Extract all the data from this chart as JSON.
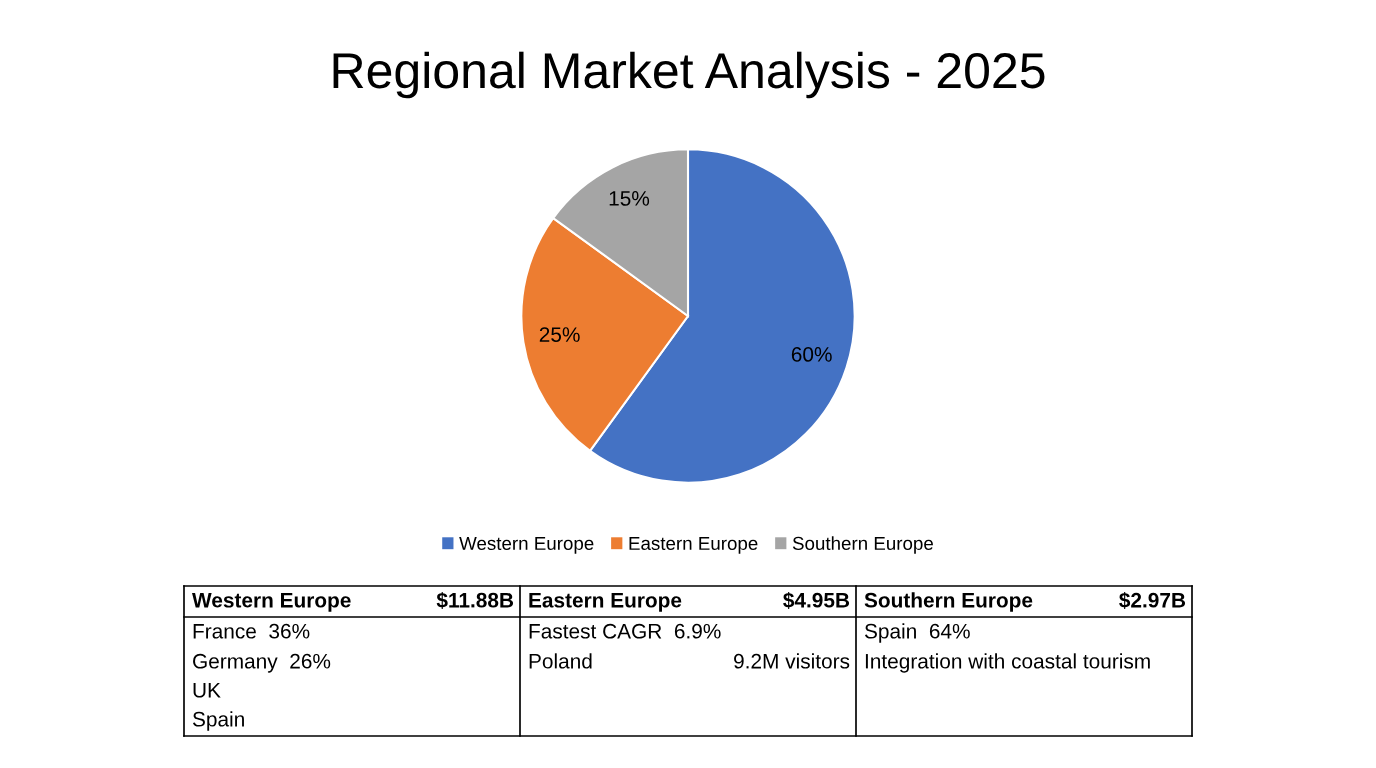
{
  "chart_data": {
    "type": "pie",
    "title": "Regional Market Analysis - 2025",
    "categories": [
      "Western Europe",
      "Eastern Europe",
      "Southern Europe"
    ],
    "values": [
      60,
      25,
      15
    ],
    "colors": [
      "#4472c4",
      "#ed7d31",
      "#a5a5a5"
    ],
    "value_labels": [
      "60%",
      "25%",
      "15%"
    ],
    "legend": "bottom",
    "annotations": [
      "Western Europe",
      "$11.88B",
      "Eastern Europe",
      "$4.95B",
      "Southern Europe",
      "$2.97B",
      "France  36%",
      "Germany  26%",
      "UK",
      "Spain",
      "Fastest CAGR  6.9%",
      "Poland",
      "9.2M visitors",
      "Spain  64%",
      "Integration with coastal tourism"
    ]
  }
}
